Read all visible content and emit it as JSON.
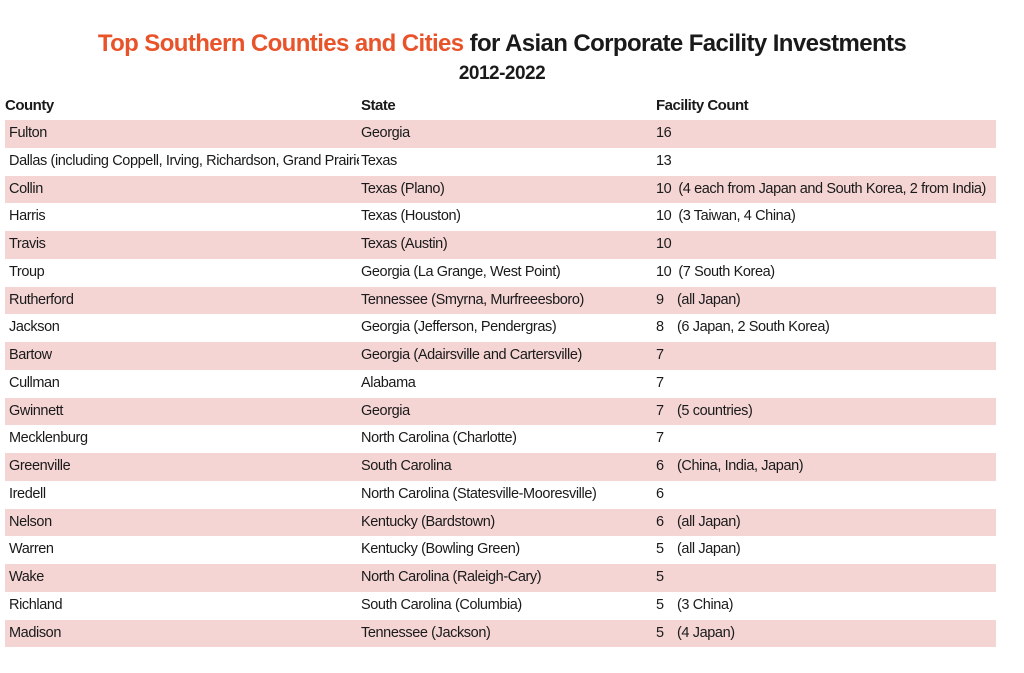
{
  "title": {
    "highlight": "Top Southern Counties and Cities",
    "rest": " for Asian Corporate Facility Investments",
    "highlight_color": "#e8532a"
  },
  "subtitle": "2012-2022",
  "chart_data": {
    "type": "table",
    "columns": [
      "County",
      "State",
      "Facility Count"
    ],
    "row_shading_color": "#f4d5d4",
    "rows": [
      {
        "county": "Fulton",
        "state": "Georgia",
        "count": "16",
        "note": ""
      },
      {
        "county": "Dallas (including Coppell, Irving, Richardson, Grand Prairie)",
        "state": "Texas",
        "count": "13",
        "note": ""
      },
      {
        "county": "Collin",
        "state": "Texas (Plano)",
        "count": "10",
        "note": "(4 each from Japan and South Korea, 2 from India)"
      },
      {
        "county": "Harris",
        "state": "Texas (Houston)",
        "count": "10",
        "note": "(3 Taiwan, 4 China)"
      },
      {
        "county": "Travis",
        "state": "Texas (Austin)",
        "count": "10",
        "note": ""
      },
      {
        "county": "Troup",
        "state": "Georgia (La Grange, West Point)",
        "count": "10",
        "note": "(7 South Korea)"
      },
      {
        "county": "Rutherford",
        "state": "Tennessee (Smyrna, Murfreeesboro)",
        "count": "9",
        "note": "(all Japan)"
      },
      {
        "county": "Jackson",
        "state": "Georgia (Jefferson, Pendergras)",
        "count": "8",
        "note": "(6 Japan, 2 South Korea)"
      },
      {
        "county": "Bartow",
        "state": "Georgia (Adairsville and Cartersville)",
        "count": "7",
        "note": ""
      },
      {
        "county": "Cullman",
        "state": "Alabama",
        "count": "7",
        "note": ""
      },
      {
        "county": "Gwinnett",
        "state": "Georgia",
        "count": "7",
        "note": "(5 countries)"
      },
      {
        "county": "Mecklenburg",
        "state": "North Carolina (Charlotte)",
        "count": "7",
        "note": ""
      },
      {
        "county": "Greenville",
        "state": "South Carolina",
        "count": "6",
        "note": "(China, India, Japan)"
      },
      {
        "county": "Iredell",
        "state": "North Carolina (Statesville-Mooresville)",
        "count": "6",
        "note": ""
      },
      {
        "county": "Nelson",
        "state": "Kentucky (Bardstown)",
        "count": "6",
        "note": "(all Japan)"
      },
      {
        "county": "Warren",
        "state": "Kentucky (Bowling Green)",
        "count": "5",
        "note": "(all Japan)"
      },
      {
        "county": "Wake",
        "state": "North Carolina (Raleigh-Cary)",
        "count": "5",
        "note": ""
      },
      {
        "county": "Richland",
        "state": "South Carolina (Columbia)",
        "count": "5",
        "note": "(3 China)"
      },
      {
        "county": "Madison",
        "state": "Tennessee (Jackson)",
        "count": "5",
        "note": "(4 Japan)"
      }
    ]
  }
}
